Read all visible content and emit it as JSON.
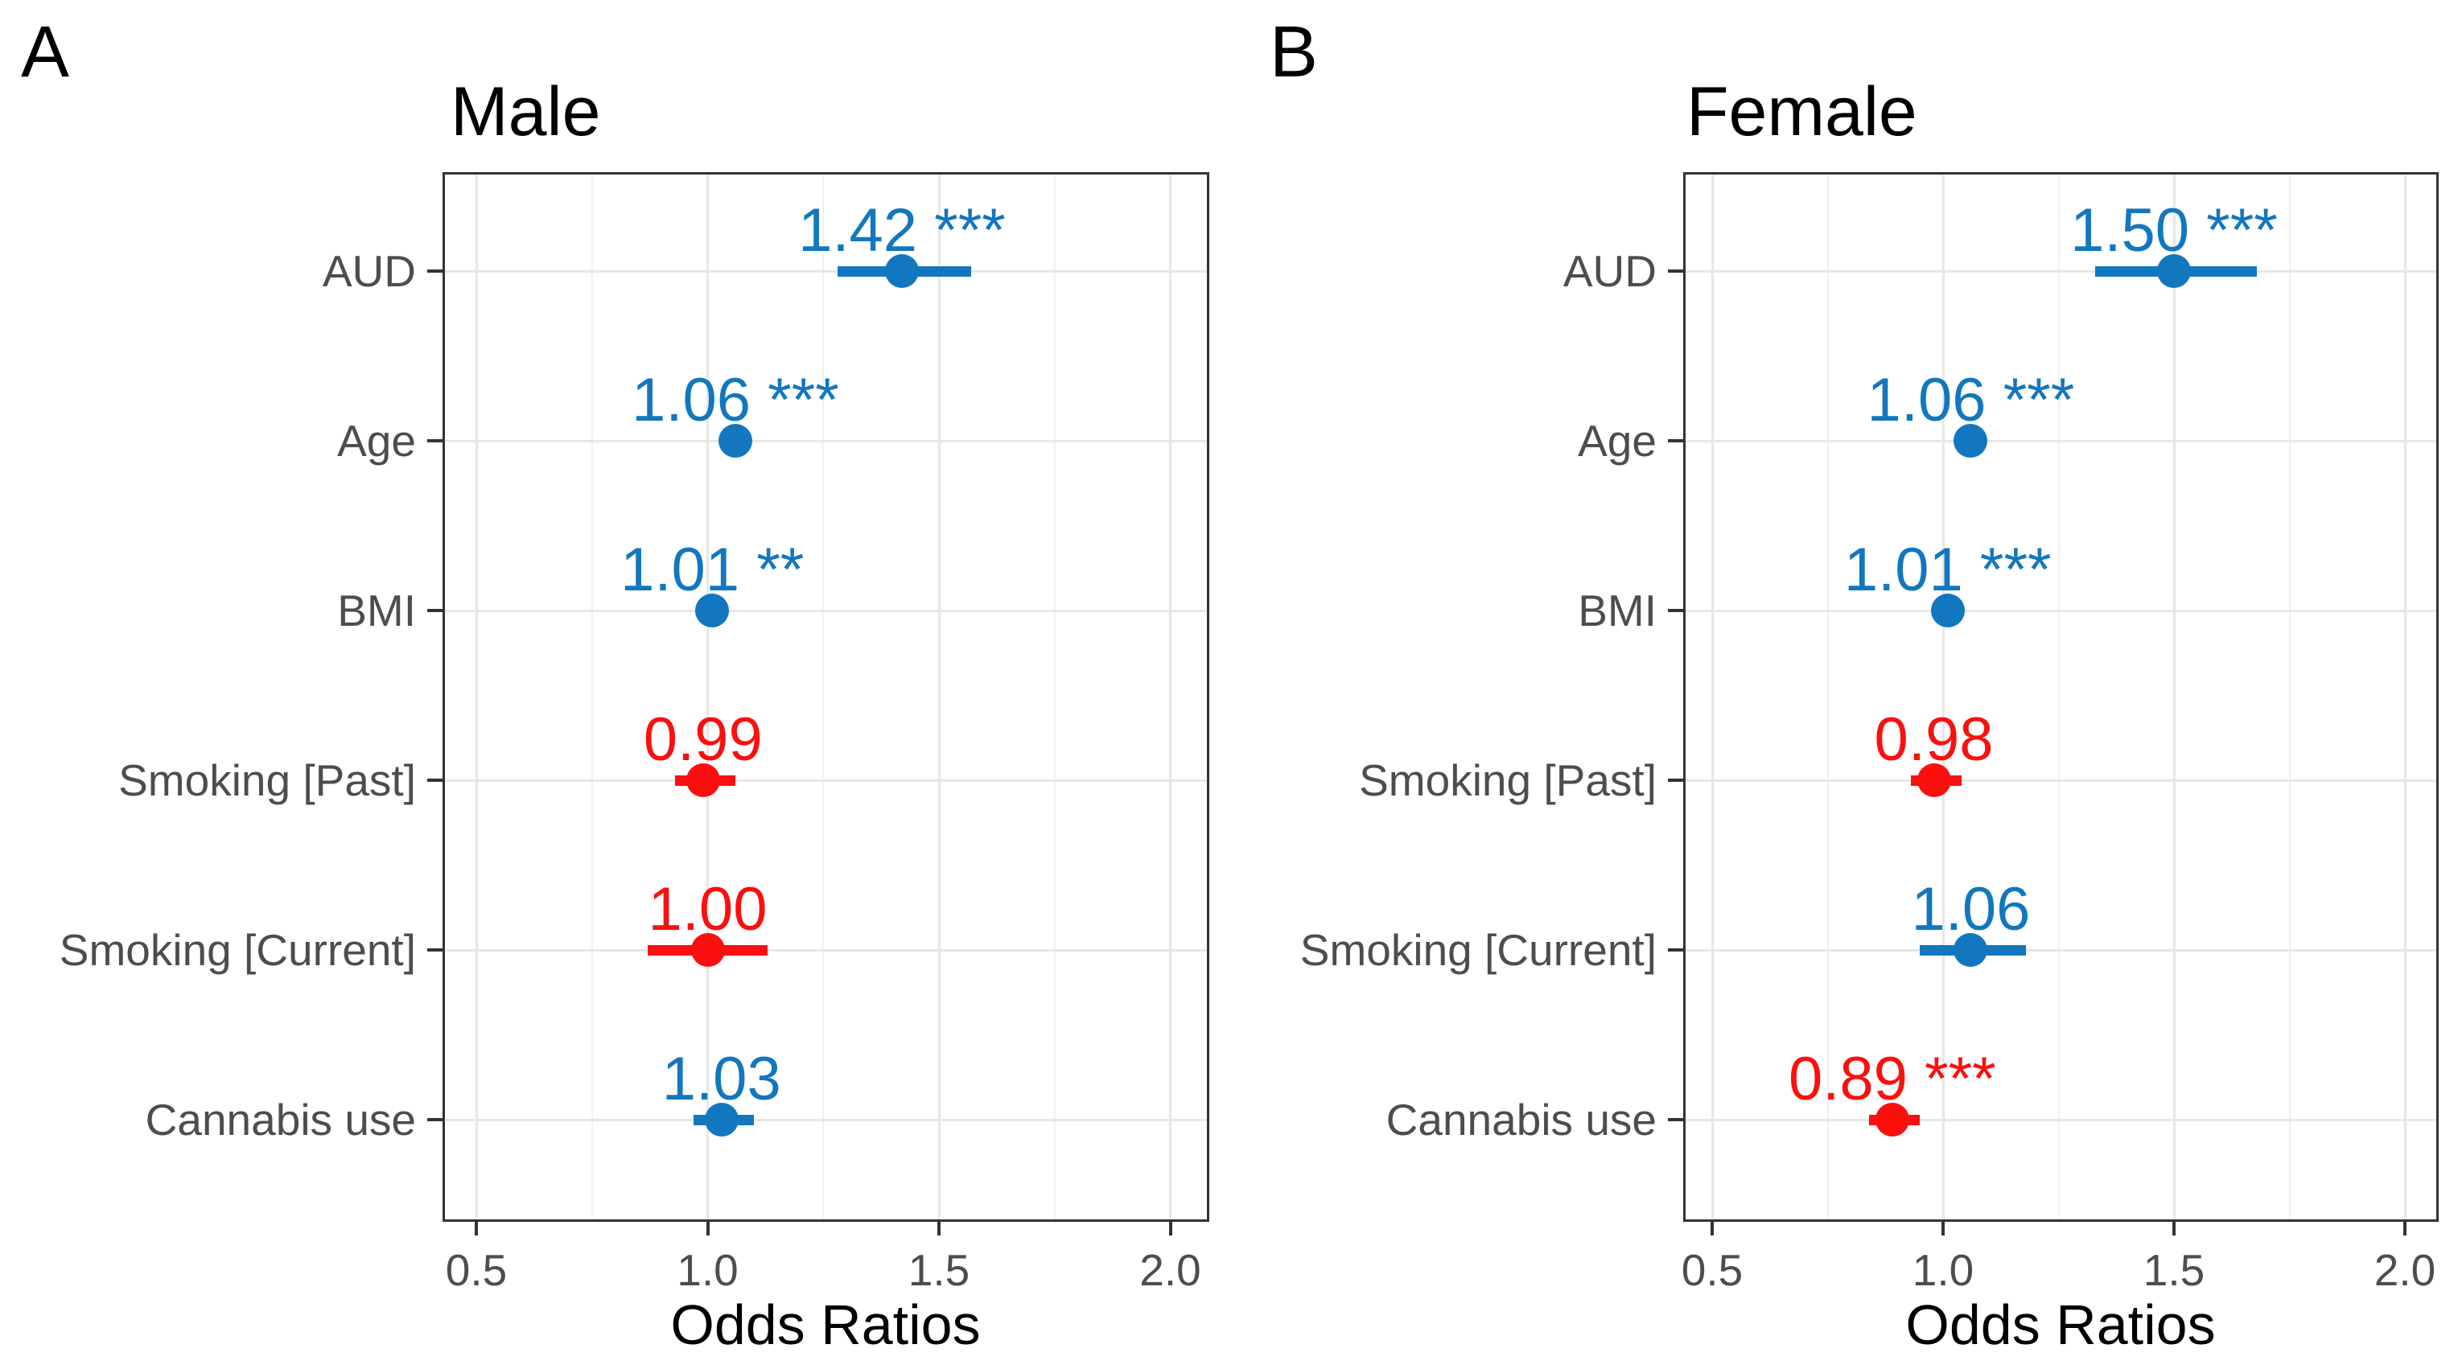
{
  "figure_title": "",
  "panel_labels": {
    "a": "A",
    "b": "B"
  },
  "colors": {
    "positive_blue": "#1277BE",
    "negative_red": "#FA100E",
    "grid_major": "#E7E7E7",
    "grid_minor": "#F1F1F1",
    "panel_border": "#333333",
    "axis_text": "#4d4d4d",
    "title_text": "#000000"
  },
  "chart_data": [
    {
      "type": "scatter",
      "subtype": "forest-plot",
      "panel_label": "A",
      "title": "Male",
      "xlabel": "Odds Ratios",
      "xlim": [
        0.43,
        2.08
      ],
      "xticks": [
        0.5,
        1.0,
        1.5,
        2.0
      ],
      "xtick_labels": [
        "0.5",
        "1.0",
        "1.5",
        "2.0"
      ],
      "x_minor_gridlines": [
        0.75,
        1.25,
        1.75
      ],
      "grid": true,
      "legend": "none",
      "categories": [
        "AUD",
        "Age",
        "BMI",
        "Smoking [Past]",
        "Smoking [Current]",
        "Cannabis use"
      ],
      "points": [
        {
          "label": "AUD",
          "or": 1.42,
          "ci_low": 1.28,
          "ci_high": 1.57,
          "stars": "***",
          "value_text": "1.42",
          "color": "blue"
        },
        {
          "label": "Age",
          "or": 1.06,
          "ci_low": 1.03,
          "ci_high": 1.09,
          "stars": "***",
          "value_text": "1.06",
          "color": "blue"
        },
        {
          "label": "BMI",
          "or": 1.01,
          "ci_low": 1.0,
          "ci_high": 1.02,
          "stars": "**",
          "value_text": "1.01",
          "color": "blue"
        },
        {
          "label": "Smoking [Past]",
          "or": 0.99,
          "ci_low": 0.93,
          "ci_high": 1.06,
          "stars": "",
          "value_text": "0.99",
          "color": "red"
        },
        {
          "label": "Smoking [Current]",
          "or": 1.0,
          "ci_low": 0.87,
          "ci_high": 1.13,
          "stars": "",
          "value_text": "1.00",
          "color": "red"
        },
        {
          "label": "Cannabis use",
          "or": 1.03,
          "ci_low": 0.97,
          "ci_high": 1.1,
          "stars": "",
          "value_text": "1.03",
          "color": "blue"
        }
      ]
    },
    {
      "type": "scatter",
      "subtype": "forest-plot",
      "panel_label": "B",
      "title": "Female",
      "xlabel": "Odds Ratios",
      "xlim": [
        0.43,
        2.07
      ],
      "xticks": [
        0.5,
        1.0,
        1.5,
        2.0
      ],
      "xtick_labels": [
        "0.5",
        "1.0",
        "1.5",
        "2.0"
      ],
      "x_minor_gridlines": [
        0.75,
        1.25,
        1.75
      ],
      "grid": true,
      "legend": "none",
      "categories": [
        "AUD",
        "Age",
        "BMI",
        "Smoking [Past]",
        "Smoking [Current]",
        "Cannabis use"
      ],
      "points": [
        {
          "label": "AUD",
          "or": 1.5,
          "ci_low": 1.33,
          "ci_high": 1.68,
          "stars": "***",
          "value_text": "1.50",
          "color": "blue"
        },
        {
          "label": "Age",
          "or": 1.06,
          "ci_low": 1.03,
          "ci_high": 1.09,
          "stars": "***",
          "value_text": "1.06",
          "color": "blue"
        },
        {
          "label": "BMI",
          "or": 1.01,
          "ci_low": 1.0,
          "ci_high": 1.02,
          "stars": "***",
          "value_text": "1.01",
          "color": "blue"
        },
        {
          "label": "Smoking [Past]",
          "or": 0.98,
          "ci_low": 0.93,
          "ci_high": 1.04,
          "stars": "",
          "value_text": "0.98",
          "color": "red"
        },
        {
          "label": "Smoking [Current]",
          "or": 1.06,
          "ci_low": 0.95,
          "ci_high": 1.18,
          "stars": "",
          "value_text": "1.06",
          "color": "blue"
        },
        {
          "label": "Cannabis use",
          "or": 0.89,
          "ci_low": 0.84,
          "ci_high": 0.95,
          "stars": "***",
          "value_text": "0.89",
          "color": "red"
        }
      ]
    }
  ]
}
